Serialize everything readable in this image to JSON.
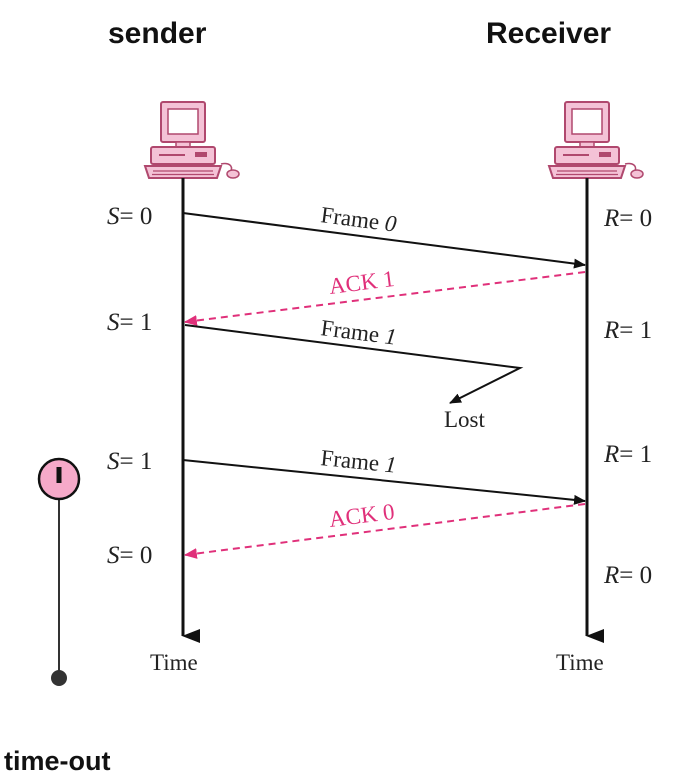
{
  "headers": {
    "sender": "sender",
    "receiver": "Receiver"
  },
  "sender_states": [
    {
      "var": "S",
      "eq": "= 0"
    },
    {
      "var": "S",
      "eq": "= 1"
    },
    {
      "var": "S",
      "eq": "= 1"
    },
    {
      "var": "S",
      "eq": "= 0"
    }
  ],
  "receiver_states": [
    {
      "var": "R",
      "eq": "= 0"
    },
    {
      "var": "R",
      "eq": "= 1"
    },
    {
      "var": "R",
      "eq": "= 1"
    },
    {
      "var": "R",
      "eq": "= 0"
    }
  ],
  "messages": {
    "frame0": {
      "word": "Frame",
      "num": "0"
    },
    "ack1": "ACK 1",
    "frame1_lost": {
      "word": "Frame",
      "num": "1"
    },
    "lost": "Lost",
    "frame1_resend": {
      "word": "Frame",
      "num": "1"
    },
    "ack0": "ACK 0"
  },
  "axis_labels": {
    "sender_time": "Time",
    "receiver_time": "Time"
  },
  "timer": {
    "label": "time-out"
  },
  "colors": {
    "ack": "#e0307a",
    "line": "#111111",
    "computer": "#f4c2d6",
    "computer_edge": "#b0486e",
    "timer_fill": "#f6a9c9"
  },
  "icons": {
    "sender_computer": "computer-icon",
    "receiver_computer": "computer-icon",
    "timer": "timer-icon"
  }
}
